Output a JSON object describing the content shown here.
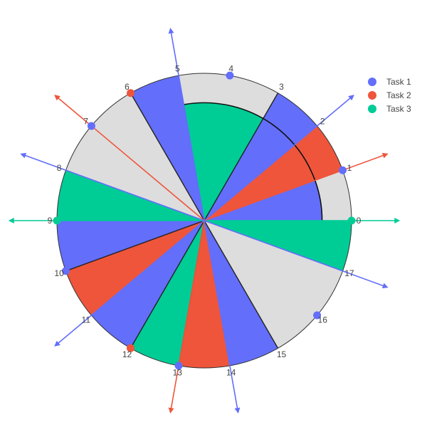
{
  "chart_data": {
    "type": "polar-bar",
    "title": "",
    "sector_count": 18,
    "radial_range": [
      0,
      1
    ],
    "tick_labels": [
      "0",
      "1",
      "2",
      "3",
      "4",
      "5",
      "6",
      "7",
      "8",
      "9",
      "10",
      "11",
      "12",
      "13",
      "14",
      "15",
      "16",
      "17"
    ],
    "background_slice_color": "#dddddd",
    "series": [
      {
        "name": "Task 1",
        "color": "#636efa"
      },
      {
        "name": "Task 2",
        "color": "#ef553b"
      },
      {
        "name": "Task 3",
        "color": "#00cc96"
      }
    ],
    "slices": [
      {
        "from": 0,
        "to": 1,
        "task": "Task 1",
        "r": 0.8
      },
      {
        "from": 1,
        "to": 2,
        "task": "Task 2",
        "r": 0.8
      },
      {
        "from": 2,
        "to": 3,
        "task": "Task 1",
        "r": 0.8
      },
      {
        "from": 3,
        "to": 5,
        "task": "Task 3",
        "r": 0.8
      },
      {
        "from": 5,
        "to": 6,
        "task": "Task 1",
        "r": 1.0
      },
      {
        "from": 8,
        "to": 9,
        "task": "Task 3",
        "r": 1.0
      },
      {
        "from": 9,
        "to": 10,
        "task": "Task 1",
        "r": 1.0
      },
      {
        "from": 10,
        "to": 11,
        "task": "Task 2",
        "r": 1.0
      },
      {
        "from": 11,
        "to": 12,
        "task": "Task 1",
        "r": 1.0
      },
      {
        "from": 12,
        "to": 13,
        "task": "Task 3",
        "r": 1.0
      },
      {
        "from": 13,
        "to": 14,
        "task": "Task 2",
        "r": 1.0
      },
      {
        "from": 14,
        "to": 15,
        "task": "Task 1",
        "r": 1.0
      },
      {
        "from": 17,
        "to": 18,
        "task": "Task 3",
        "r": 1.0
      },
      {
        "from": 1,
        "to": 2,
        "task": "Task 2",
        "r": 1.0
      },
      {
        "from": 2,
        "to": 3,
        "task": "Task 1",
        "r": 1.0
      }
    ],
    "markers": [
      {
        "position": 0,
        "task": "Task 3"
      },
      {
        "position": 1,
        "task": "Task 1"
      },
      {
        "position": 4,
        "task": "Task 1"
      },
      {
        "position": 6,
        "task": "Task 2"
      },
      {
        "position": 7,
        "task": "Task 1"
      },
      {
        "position": 9,
        "task": "Task 3"
      },
      {
        "position": 10,
        "task": "Task 1"
      },
      {
        "position": 12,
        "task": "Task 2"
      },
      {
        "position": 13,
        "task": "Task 1"
      },
      {
        "position": 16,
        "task": "Task 1"
      }
    ],
    "arrows": [
      {
        "position": 0,
        "task": "Task 3",
        "double": true
      },
      {
        "position": 1,
        "task": "Task 2",
        "double": false
      },
      {
        "position": 2,
        "task": "Task 1",
        "double": false
      },
      {
        "position": 5,
        "task": "Task 1",
        "double": false
      },
      {
        "position": 7,
        "task": "Task 2",
        "double": false
      },
      {
        "position": 8,
        "task": "Task 1",
        "double": false
      },
      {
        "position": 11,
        "task": "Task 1",
        "double": false
      },
      {
        "position": 13,
        "task": "Task 2",
        "double": false
      },
      {
        "position": 14,
        "task": "Task 1",
        "double": false
      },
      {
        "position": 17,
        "task": "Task 1",
        "double": false
      }
    ],
    "legend": {
      "placement": "top-right",
      "entries": [
        "Task 1",
        "Task 2",
        "Task 3"
      ]
    }
  }
}
